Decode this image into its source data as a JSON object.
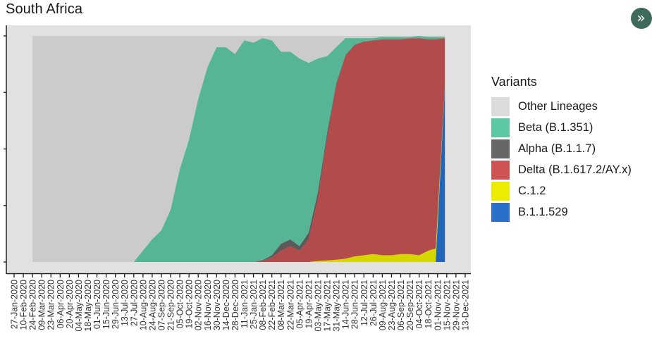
{
  "title": "South Africa",
  "collapse_button": {
    "icon": "double-chevron-right-icon",
    "glyph": "»"
  },
  "legend": {
    "title": "Variants",
    "items": [
      {
        "label": "Other Lineages",
        "color": "#dcdcdc"
      },
      {
        "label": "Beta (B.1.351)",
        "color": "#5dc9a3"
      },
      {
        "label": "Alpha (B.1.1.7)",
        "color": "#666666"
      },
      {
        "label": "Delta (B.1.617.2/AY.x)",
        "color": "#cf5555"
      },
      {
        "label": "C.1.2",
        "color": "#ecec00"
      },
      {
        "label": "B.1.1.529",
        "color": "#2a6fc9"
      }
    ]
  },
  "plot_colors": {
    "panel_bg": "#e1e1e1",
    "plot_bg": "#cbcbcb",
    "beta": "#55b595",
    "alpha": "#5a5a5a",
    "delta": "#b24b4b",
    "c12": "#d6d600",
    "b11529": "#2166b8",
    "axis": "#1a1a1a"
  },
  "chart_data": {
    "type": "area",
    "title": "South Africa",
    "xlabel": "",
    "ylabel": "",
    "ylim": [
      0,
      1
    ],
    "y_ticks": [
      0,
      0.25,
      0.5,
      0.75,
      1.0
    ],
    "y_tick_labels_visible": false,
    "stacked": true,
    "legend_title": "Variants",
    "legend_position": "right",
    "x_tick_labels": [
      "27-Jan-2020",
      "10-Feb-2020",
      "24-Feb-2020",
      "09-Mar-2020",
      "23-Mar-2020",
      "06-Apr-2020",
      "20-Apr-2020",
      "04-May-2020",
      "18-May-2020",
      "01-Jun-2020",
      "15-Jun-2020",
      "29-Jun-2020",
      "13-Jul-2020",
      "27-Jul-2020",
      "10-Aug-2020",
      "24-Aug-2020",
      "07-Sep-2020",
      "21-Sep-2020",
      "05-Oct-2020",
      "19-Oct-2020",
      "02-Nov-2020",
      "16-Nov-2020",
      "30-Nov-2020",
      "14-Dec-2020",
      "28-Dec-2020",
      "11-Jan-2021",
      "25-Jan-2021",
      "08-Feb-2021",
      "22-Feb-2021",
      "08-Mar-2021",
      "22-Mar-2021",
      "05-Apr-2021",
      "19-Apr-2021",
      "03-May-2021",
      "17-May-2021",
      "31-May-2021",
      "14-Jun-2021",
      "28-Jun-2021",
      "12-Jul-2021",
      "26-Jul-2021",
      "09-Aug-2021",
      "23-Aug-2021",
      "06-Sep-2021",
      "20-Sep-2021",
      "04-Oct-2021",
      "18-Oct-2021",
      "01-Nov-2021",
      "15-Nov-2021",
      "29-Nov-2021",
      "13-Dec-2021"
    ],
    "x_index": [
      2,
      13,
      14,
      15,
      16,
      17,
      18,
      19,
      20,
      21,
      22,
      23,
      24,
      25,
      26,
      27,
      28,
      29,
      30,
      31,
      32,
      33,
      34,
      35,
      36,
      37,
      38,
      39,
      40,
      41,
      42,
      43,
      44,
      45,
      45.8,
      46.8
    ],
    "series": [
      {
        "name": "B.1.1.529",
        "values": [
          0,
          0,
          0,
          0,
          0,
          0,
          0,
          0,
          0,
          0,
          0,
          0,
          0,
          0,
          0,
          0,
          0,
          0,
          0,
          0,
          0,
          0,
          0,
          0,
          0,
          0,
          0,
          0,
          0,
          0,
          0,
          0,
          0,
          0,
          0,
          0.78
        ]
      },
      {
        "name": "C.1.2",
        "values": [
          0,
          0,
          0,
          0,
          0,
          0,
          0,
          0,
          0,
          0,
          0,
          0,
          0,
          0,
          0,
          0,
          0,
          0,
          0,
          0,
          0,
          0.005,
          0.007,
          0.01,
          0.015,
          0.025,
          0.03,
          0.035,
          0.03,
          0.03,
          0.035,
          0.035,
          0.03,
          0.05,
          0.06,
          0.006
        ]
      },
      {
        "name": "Delta (B.1.617.2/AY.x)",
        "values": [
          0,
          0,
          0,
          0,
          0,
          0,
          0,
          0,
          0,
          0,
          0,
          0,
          0,
          0,
          0,
          0.005,
          0.02,
          0.05,
          0.07,
          0.05,
          0.1,
          0.275,
          0.543,
          0.77,
          0.895,
          0.935,
          0.945,
          0.945,
          0.955,
          0.955,
          0.95,
          0.955,
          0.96,
          0.935,
          0.925,
          0.204
        ]
      },
      {
        "name": "Alpha (B.1.1.7)",
        "values": [
          0,
          0,
          0,
          0,
          0,
          0,
          0,
          0,
          0,
          0,
          0,
          0,
          0,
          0,
          0,
          0.003,
          0.01,
          0.03,
          0.03,
          0.02,
          0.03,
          0.03,
          0.02,
          0.01,
          0.005,
          0.002,
          0,
          0,
          0,
          0,
          0,
          0,
          0,
          0,
          0,
          0
        ]
      },
      {
        "name": "Beta (B.1.351)",
        "values": [
          0,
          0,
          0.05,
          0.1,
          0.14,
          0.23,
          0.41,
          0.54,
          0.72,
          0.86,
          0.95,
          0.95,
          0.92,
          0.98,
          0.97,
          0.982,
          0.95,
          0.85,
          0.83,
          0.83,
          0.75,
          0.59,
          0.34,
          0.16,
          0.075,
          0.028,
          0.015,
          0.01,
          0.01,
          0.01,
          0.01,
          0.005,
          0.01,
          0.01,
          0.01,
          0.005
        ]
      },
      {
        "name": "Other Lineages",
        "values": [
          1,
          1,
          0.95,
          0.9,
          0.86,
          0.77,
          0.59,
          0.46,
          0.28,
          0.14,
          0.05,
          0.05,
          0.08,
          0.02,
          0.03,
          0.01,
          0.02,
          0.07,
          0.07,
          0.1,
          0.12,
          0.1,
          0.09,
          0.05,
          0.015,
          0.01,
          0.01,
          0.01,
          0.005,
          0.005,
          0.005,
          0.005,
          0,
          0.005,
          0.005,
          0.005
        ]
      }
    ]
  }
}
